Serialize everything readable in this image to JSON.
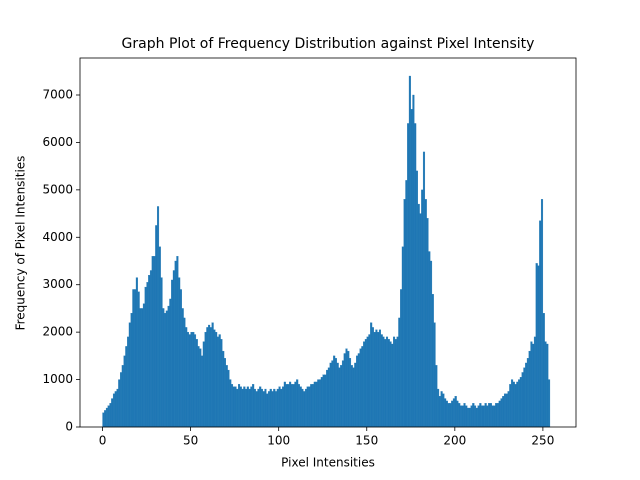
{
  "chart_data": {
    "type": "histogram",
    "title": "Graph Plot of Frequency Distribution against Pixel Intensity",
    "x_label": "Pixel Intensities",
    "y_label": "Frequency of Pixel Intensities",
    "color": "#1f77b4",
    "bins": [
      0,
      1,
      2,
      3,
      4,
      5,
      6,
      7,
      8,
      9,
      10,
      11,
      12,
      13,
      14,
      15,
      16,
      17,
      18,
      19,
      20,
      21,
      22,
      23,
      24,
      25,
      26,
      27,
      28,
      29,
      30,
      31,
      32,
      33,
      34,
      35,
      36,
      37,
      38,
      39,
      40,
      41,
      42,
      43,
      44,
      45,
      46,
      47,
      48,
      49,
      50,
      51,
      52,
      53,
      54,
      55,
      56,
      57,
      58,
      59,
      60,
      61,
      62,
      63,
      64,
      65,
      66,
      67,
      68,
      69,
      70,
      71,
      72,
      73,
      74,
      75,
      76,
      77,
      78,
      79,
      80,
      81,
      82,
      83,
      84,
      85,
      86,
      87,
      88,
      89,
      90,
      91,
      92,
      93,
      94,
      95,
      96,
      97,
      98,
      99,
      100,
      101,
      102,
      103,
      104,
      105,
      106,
      107,
      108,
      109,
      110,
      111,
      112,
      113,
      114,
      115,
      116,
      117,
      118,
      119,
      120,
      121,
      122,
      123,
      124,
      125,
      126,
      127,
      128,
      129,
      130,
      131,
      132,
      133,
      134,
      135,
      136,
      137,
      138,
      139,
      140,
      141,
      142,
      143,
      144,
      145,
      146,
      147,
      148,
      149,
      150,
      151,
      152,
      153,
      154,
      155,
      156,
      157,
      158,
      159,
      160,
      161,
      162,
      163,
      164,
      165,
      166,
      167,
      168,
      169,
      170,
      171,
      172,
      173,
      174,
      175,
      176,
      177,
      178,
      179,
      180,
      181,
      182,
      183,
      184,
      185,
      186,
      187,
      188,
      189,
      190,
      191,
      192,
      193,
      194,
      195,
      196,
      197,
      198,
      199,
      200,
      201,
      202,
      203,
      204,
      205,
      206,
      207,
      208,
      209,
      210,
      211,
      212,
      213,
      214,
      215,
      216,
      217,
      218,
      219,
      220,
      221,
      222,
      223,
      224,
      225,
      226,
      227,
      228,
      229,
      230,
      231,
      232,
      233,
      234,
      235,
      236,
      237,
      238,
      239,
      240,
      241,
      242,
      243,
      244,
      245,
      246,
      247,
      248,
      249,
      250,
      251,
      252,
      253,
      254,
      255,
      256
    ],
    "values": [
      300,
      350,
      400,
      450,
      500,
      600,
      700,
      750,
      800,
      1000,
      1150,
      1300,
      1500,
      1700,
      1900,
      2200,
      2400,
      2900,
      2900,
      3150,
      2850,
      2500,
      2500,
      2600,
      2950,
      3050,
      3200,
      3300,
      3600,
      3600,
      4250,
      4650,
      3800,
      3150,
      2500,
      2400,
      2450,
      2550,
      2700,
      3100,
      3300,
      3500,
      3600,
      3150,
      2900,
      2500,
      2300,
      2100,
      2000,
      1950,
      2000,
      2000,
      1950,
      1850,
      1700,
      1650,
      1500,
      1800,
      2000,
      2100,
      2150,
      2100,
      2200,
      2050,
      2000,
      1900,
      1950,
      1850,
      1600,
      1450,
      1300,
      1200,
      1000,
      900,
      850,
      850,
      800,
      900,
      850,
      800,
      850,
      800,
      850,
      800,
      850,
      900,
      800,
      750,
      800,
      850,
      800,
      750,
      800,
      700,
      750,
      800,
      750,
      800,
      750,
      800,
      850,
      800,
      850,
      950,
      900,
      900,
      950,
      900,
      900,
      950,
      1000,
      900,
      850,
      800,
      750,
      800,
      850,
      850,
      900,
      900,
      950,
      950,
      1000,
      1000,
      1050,
      1100,
      1100,
      1200,
      1250,
      1350,
      1400,
      1500,
      1450,
      1350,
      1250,
      1300,
      1400,
      1550,
      1650,
      1600,
      1450,
      1300,
      1250,
      1350,
      1500,
      1550,
      1650,
      1700,
      1800,
      1850,
      1900,
      1950,
      2200,
      2100,
      2000,
      2050,
      2000,
      2050,
      1950,
      1900,
      1850,
      1900,
      1850,
      1800,
      1750,
      1900,
      1850,
      1900,
      2300,
      2900,
      3800,
      4800,
      5200,
      6400,
      7400,
      6700,
      7000,
      6400,
      5400,
      4700,
      4500,
      5000,
      5800,
      4800,
      4400,
      3700,
      3500,
      2800,
      2200,
      1300,
      800,
      650,
      750,
      700,
      600,
      550,
      500,
      500,
      550,
      600,
      650,
      550,
      500,
      450,
      450,
      500,
      450,
      400,
      400,
      450,
      500,
      450,
      400,
      450,
      500,
      450,
      450,
      500,
      450,
      500,
      500,
      450,
      450,
      500,
      500,
      550,
      600,
      650,
      700,
      700,
      750,
      900,
      1000,
      950,
      900,
      950,
      1000,
      1050,
      1150,
      1250,
      1350,
      1450,
      1600,
      1800,
      1750,
      1900,
      3450,
      3400,
      4350,
      4800,
      2400,
      1800,
      1750,
      1000,
      0,
      0
    ],
    "xlim": [
      -12.8,
      268.8
    ],
    "ylim": [
      0,
      7780
    ],
    "xticks": [
      0,
      50,
      100,
      150,
      200,
      250
    ],
    "yticks": [
      0,
      1000,
      2000,
      3000,
      4000,
      5000,
      6000,
      7000
    ]
  }
}
